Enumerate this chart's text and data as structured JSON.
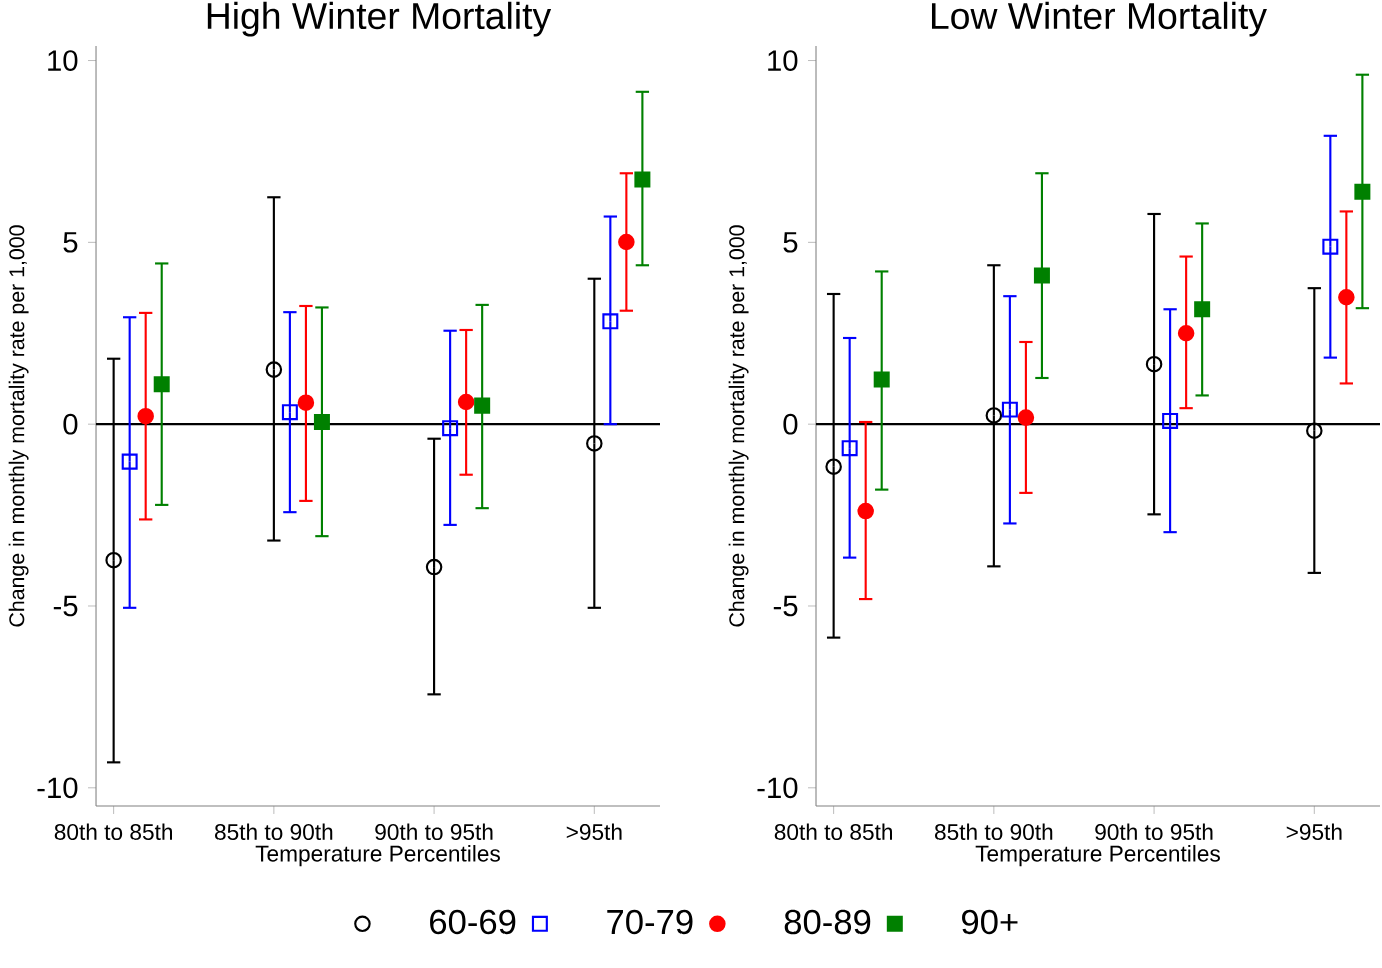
{
  "chart_data": [
    {
      "type": "scatter",
      "title": "High Winter Mortality",
      "xlabel": "Temperature Percentiles",
      "ylabel": "Change in monthly mortality rate per 1,000",
      "categories": [
        "80th to 85th",
        "85th to 90th",
        "90th to 95th",
        ">95th"
      ],
      "ylim": [
        -10.5,
        10.4
      ],
      "yticks": [
        -10,
        -5,
        0,
        5,
        10
      ],
      "legend": "bottom",
      "ref_lines": [
        {
          "axis": "y",
          "value": 0,
          "color": "#000000"
        }
      ],
      "series": [
        {
          "name": "60-69",
          "color": "#000000",
          "marker": "circle",
          "values": [
            -3.74,
            1.5,
            -3.93,
            -0.53
          ],
          "errors": [
            [
              -9.3,
              1.8
            ],
            [
              -3.2,
              6.24
            ],
            [
              -7.43,
              -0.4
            ],
            [
              -5.05,
              4.0
            ]
          ]
        },
        {
          "name": "70-79",
          "color": "#0000ff",
          "marker": "square",
          "values": [
            -1.03,
            0.33,
            -0.11,
            2.83
          ],
          "errors": [
            [
              -5.05,
              2.94
            ],
            [
              -2.42,
              3.08
            ],
            [
              -2.77,
              2.57
            ],
            [
              0,
              5.71
            ]
          ]
        },
        {
          "name": "80-89",
          "color": "#ff0000",
          "marker": "circle",
          "values": [
            0.22,
            0.59,
            0.61,
            5.01
          ],
          "errors": [
            [
              -2.62,
              3.06
            ],
            [
              -2.11,
              3.25
            ],
            [
              -1.39,
              2.59
            ],
            [
              3.12,
              6.9
            ]
          ]
        },
        {
          "name": "90+",
          "color": "#008000",
          "marker": "square",
          "values": [
            1.1,
            0.06,
            0.51,
            6.73
          ],
          "errors": [
            [
              -2.22,
              4.42
            ],
            [
              -3.08,
              3.21
            ],
            [
              -2.31,
              3.28
            ],
            [
              4.37,
              9.14
            ]
          ]
        }
      ]
    },
    {
      "type": "scatter",
      "title": "Low Winter Mortality",
      "xlabel": "Temperature Percentiles",
      "ylabel": "Change in monthly mortality rate per 1,000",
      "categories": [
        "80th to 85th",
        "85th to 90th",
        "90th to 95th",
        ">95th"
      ],
      "ylim": [
        -10.5,
        10.4
      ],
      "yticks": [
        -10,
        -5,
        0,
        5,
        10
      ],
      "ref_lines": [
        {
          "axis": "y",
          "value": 0,
          "color": "#000000"
        }
      ],
      "series": [
        {
          "color": "#000000",
          "marker": "circle",
          "values": [
            -1.17,
            0.24,
            1.65,
            -0.18
          ],
          "errors": [
            [
              -5.87,
              3.58
            ],
            [
              -3.91,
              4.37
            ],
            [
              -2.48,
              5.78
            ],
            [
              -4.09,
              3.74
            ]
          ]
        },
        {
          "color": "#0000ff",
          "marker": "square",
          "values": [
            -0.66,
            0.4,
            0.09,
            4.88
          ],
          "errors": [
            [
              -3.67,
              2.37
            ],
            [
              -2.73,
              3.52
            ],
            [
              -2.97,
              3.16
            ],
            [
              1.83,
              7.93
            ]
          ]
        },
        {
          "color": "#ff0000",
          "marker": "circle",
          "values": [
            -2.39,
            0.18,
            2.5,
            3.49
          ],
          "errors": [
            [
              -4.81,
              0.06
            ],
            [
              -1.89,
              2.26
            ],
            [
              0.44,
              4.61
            ],
            [
              1.12,
              5.85
            ]
          ]
        },
        {
          "color": "#008000",
          "marker": "square",
          "values": [
            1.23,
            4.09,
            3.16,
            6.39
          ],
          "errors": [
            [
              -1.8,
              4.2
            ],
            [
              1.27,
              6.9
            ],
            [
              0.79,
              5.52
            ],
            [
              3.19,
              9.61
            ]
          ]
        }
      ]
    }
  ]
}
